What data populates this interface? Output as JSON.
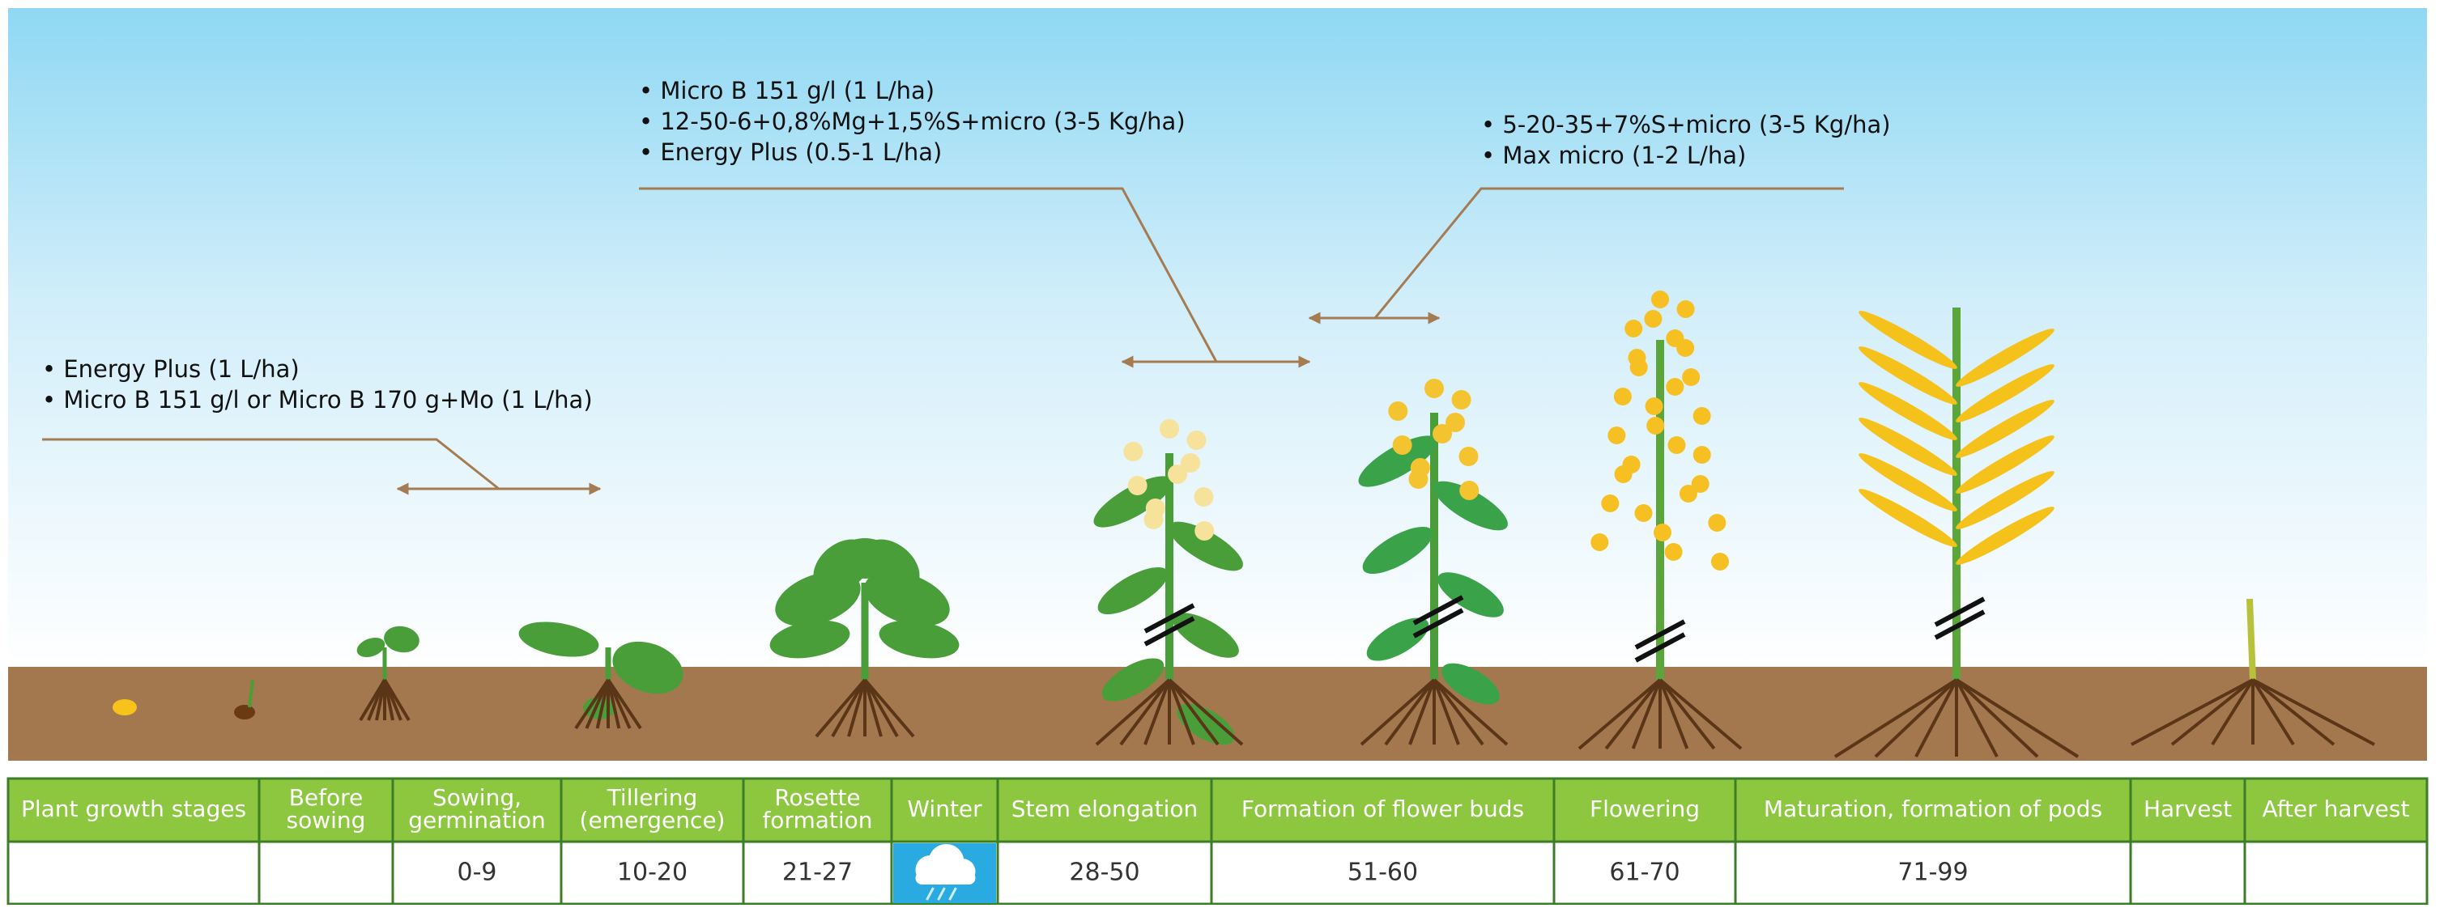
{
  "annotations": [
    {
      "lines": [
        "• Energy Plus (1 L/ha)",
        "• Micro B 151 g/l or Micro B 170 g+Mo (1 L/ha)"
      ]
    },
    {
      "lines": [
        "• Micro B 151 g/l (1 L/ha)",
        "• 12-50-6+0,8%Mg+1,5%S+micro (3-5 Kg/ha)",
        "• Energy Plus (0.5-1 L/ha)"
      ]
    },
    {
      "lines": [
        "• 5-20-35+7%S+micro (3-5 Kg/ha)",
        "• Max micro (1-2 L/ha)"
      ]
    }
  ],
  "table": {
    "stages": [
      {
        "header": [
          "Plant growth stages"
        ]
      },
      {
        "header": [
          "Before",
          "sowing"
        ]
      },
      {
        "header": [
          "Sowing,",
          "germination"
        ],
        "code": "0-9"
      },
      {
        "header": [
          "Tillering",
          "(emergence)"
        ],
        "code": "10-20"
      },
      {
        "header": [
          "Rosette",
          "formation"
        ],
        "code": "21-27"
      },
      {
        "header": [
          "Winter"
        ]
      },
      {
        "header": [
          "Stem elongation"
        ],
        "code": "28-50"
      },
      {
        "header": [
          "Formation of flower buds"
        ],
        "code": "51-60"
      },
      {
        "header": [
          "Flowering"
        ],
        "code": "61-70"
      },
      {
        "header": [
          "Maturation, formation of pods"
        ],
        "code": "71-99"
      },
      {
        "header": [
          "Harvest"
        ]
      },
      {
        "header": [
          "After harvest"
        ]
      }
    ]
  }
}
